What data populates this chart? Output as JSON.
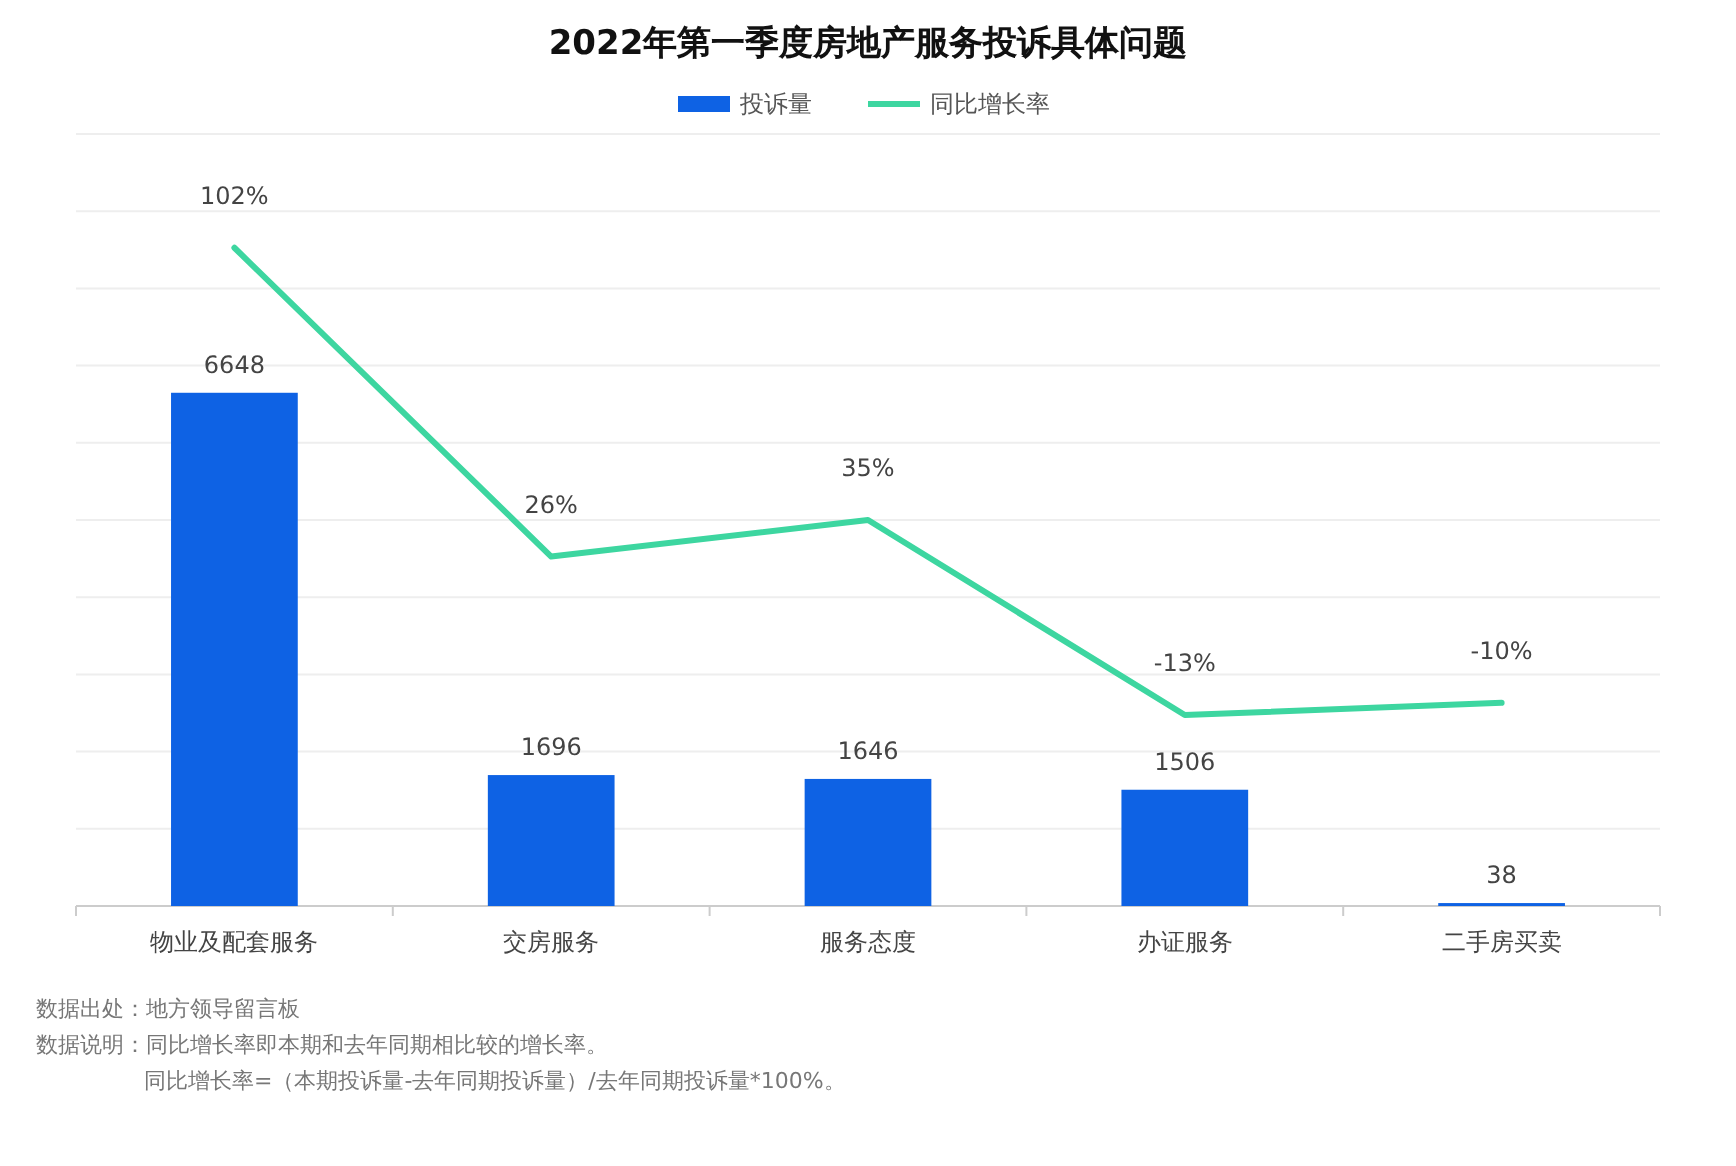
{
  "chart_data": {
    "type": "bar",
    "title": "2022年第一季度房地产服务投诉具体问题",
    "categories": [
      "物业及配套服务",
      "交房服务",
      "服务态度",
      "办证服务",
      "二手房买卖"
    ],
    "series": [
      {
        "name": "投诉量",
        "color": "#0e62e4",
        "values": [
          6648,
          1696,
          1646,
          1506,
          38
        ],
        "value_labels": [
          "6648",
          "1696",
          "1646",
          "1506",
          "38"
        ]
      },
      {
        "name": "同比增长率",
        "type": "line",
        "axis": "y2",
        "color": "#3dd6a0",
        "values": [
          102,
          26,
          35,
          -13,
          -10
        ],
        "value_labels": [
          "102%",
          "26%",
          "35%",
          "-13%",
          "-10%"
        ]
      }
    ],
    "ylim": [
      0,
      10000
    ],
    "yticks": [
      {
        "value": 0,
        "label": null
      },
      {
        "value": 1000,
        "label": null
      },
      {
        "value": 2000,
        "label": null
      },
      {
        "value": 3000,
        "label": null
      },
      {
        "value": 4000,
        "label": null
      },
      {
        "value": 5000,
        "label": null
      },
      {
        "value": 6000,
        "label": null
      },
      {
        "value": 7000,
        "label": null
      },
      {
        "value": 8000,
        "label": null
      },
      {
        "value": 9000,
        "label": null
      },
      {
        "value": 10000,
        "label": null
      }
    ],
    "y2lim": [
      -60,
      130
    ],
    "grid": "y",
    "legend": "top",
    "marker": "none",
    "tick_labels": "x",
    "annotations": [
      "数据出处：地方领导留言板",
      "数据说明：同比增长率即本期和去年同期相比较的增长率。",
      "同比增长率=（本期投诉量-去年同期投诉量）/去年同期投诉量*100%。"
    ]
  }
}
